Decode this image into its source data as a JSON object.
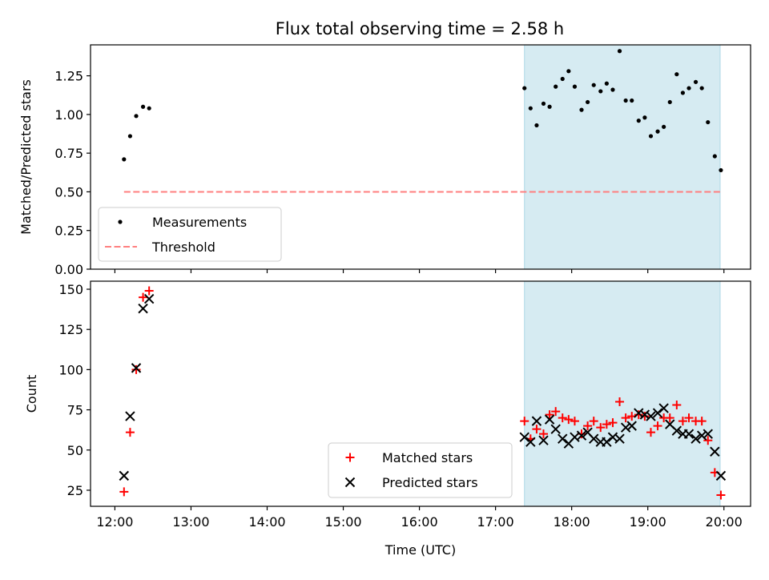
{
  "figure": {
    "title": "Flux total observing time = 2.58 h"
  },
  "chart_data": [
    {
      "type": "scatter",
      "ylabel": "Matched/Predicted stars",
      "xlabel": "",
      "ylim": [
        0,
        1.45
      ],
      "yticks": [
        "0.00",
        "0.25",
        "0.50",
        "0.75",
        "1.00",
        "1.25"
      ],
      "xlim_hours": [
        11.68,
        20.35
      ],
      "xticks": [
        "12:00",
        "13:00",
        "14:00",
        "15:00",
        "16:00",
        "17:00",
        "18:00",
        "19:00",
        "20:00"
      ],
      "shaded_span_hours": [
        17.38,
        19.95
      ],
      "shade_color": "#add8e6",
      "legend_position": "lower-left",
      "threshold": {
        "name": "Threshold",
        "value": 0.5,
        "x_range_hours": [
          12.12,
          19.95
        ],
        "color": "#ff7f7f",
        "style": "dashed"
      },
      "series": [
        {
          "name": "Measurements",
          "marker": "dot",
          "color": "#000000",
          "x_hours": [
            12.12,
            12.2,
            12.28,
            12.37,
            12.45,
            17.38,
            17.46,
            17.54,
            17.63,
            17.71,
            17.79,
            17.88,
            17.96,
            18.04,
            18.13,
            18.21,
            18.29,
            18.38,
            18.46,
            18.54,
            18.63,
            18.71,
            18.79,
            18.88,
            18.96,
            19.04,
            19.13,
            19.21,
            19.29,
            19.38,
            19.46,
            19.54,
            19.63,
            19.71,
            19.79,
            19.88,
            19.96
          ],
          "y": [
            0.71,
            0.86,
            0.99,
            1.05,
            1.04,
            1.17,
            1.04,
            0.93,
            1.07,
            1.05,
            1.18,
            1.23,
            1.28,
            1.18,
            1.03,
            1.08,
            1.19,
            1.15,
            1.2,
            1.16,
            1.41,
            1.09,
            1.09,
            0.96,
            0.98,
            0.86,
            0.89,
            0.92,
            1.08,
            1.26,
            1.14,
            1.17,
            1.21,
            1.17,
            0.95,
            0.73,
            0.64
          ]
        }
      ]
    },
    {
      "type": "scatter",
      "ylabel": "Count",
      "xlabel": "Time (UTC)",
      "ylim": [
        15,
        155
      ],
      "yticks": [
        "25",
        "50",
        "75",
        "100",
        "125",
        "150"
      ],
      "xlim_hours": [
        11.68,
        20.35
      ],
      "xticks": [
        "12:00",
        "13:00",
        "14:00",
        "15:00",
        "16:00",
        "17:00",
        "18:00",
        "19:00",
        "20:00"
      ],
      "shaded_span_hours": [
        17.38,
        19.95
      ],
      "shade_color": "#add8e6",
      "legend_position": "lower-center",
      "series": [
        {
          "name": "Matched stars",
          "marker": "plus",
          "color": "#ff0000",
          "x_hours": [
            12.12,
            12.2,
            12.28,
            12.37,
            12.45,
            17.38,
            17.46,
            17.54,
            17.63,
            17.71,
            17.79,
            17.88,
            17.96,
            18.04,
            18.13,
            18.21,
            18.29,
            18.38,
            18.46,
            18.54,
            18.63,
            18.71,
            18.79,
            18.88,
            18.96,
            19.04,
            19.13,
            19.21,
            19.29,
            19.38,
            19.46,
            19.54,
            19.63,
            19.71,
            19.79,
            19.88,
            19.96
          ],
          "y": [
            24,
            61,
            100,
            145,
            149,
            68,
            57,
            63,
            60,
            72,
            74,
            70,
            69,
            68,
            60,
            65,
            68,
            64,
            66,
            67,
            80,
            70,
            71,
            72,
            71,
            61,
            65,
            70,
            70,
            78,
            68,
            70,
            68,
            68,
            56,
            36,
            22
          ]
        },
        {
          "name": "Predicted stars",
          "marker": "x",
          "color": "#000000",
          "x_hours": [
            12.12,
            12.2,
            12.28,
            12.37,
            12.45,
            17.38,
            17.46,
            17.54,
            17.63,
            17.71,
            17.79,
            17.88,
            17.96,
            18.04,
            18.13,
            18.21,
            18.29,
            18.38,
            18.46,
            18.54,
            18.63,
            18.71,
            18.79,
            18.88,
            18.96,
            19.04,
            19.13,
            19.21,
            19.29,
            19.38,
            19.46,
            19.54,
            19.63,
            19.71,
            19.79,
            19.88,
            19.96
          ],
          "y": [
            34,
            71,
            101,
            138,
            144,
            58,
            55,
            68,
            56,
            69,
            63,
            57,
            54,
            58,
            59,
            61,
            57,
            55,
            55,
            58,
            57,
            64,
            65,
            73,
            72,
            71,
            73,
            76,
            66,
            62,
            60,
            60,
            57,
            59,
            60,
            49,
            34
          ]
        }
      ]
    }
  ]
}
